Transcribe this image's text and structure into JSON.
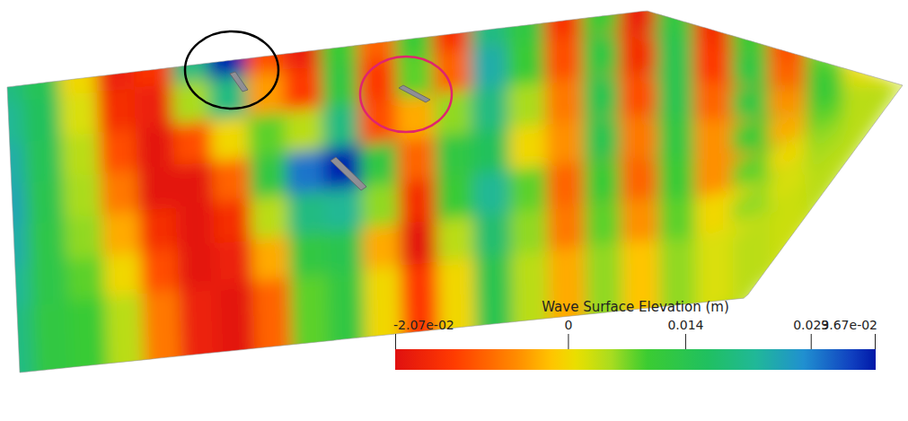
{
  "chart_data": {
    "type": "surface",
    "colorbar_title": "Wave Surface Elevation (m)",
    "color_range": [
      -0.0207,
      0.0367
    ],
    "color_ticks": [
      {
        "value": -0.0207,
        "label": "-2.07e-02"
      },
      0,
      0.014,
      0.029,
      {
        "value": 0.0367,
        "label": "3.67e-02"
      }
    ],
    "cells": [
      [
        0.02,
        0.015,
        0.0,
        -0.018,
        -0.015,
        0.02,
        0.036,
        -0.012,
        -0.018,
        0.01,
        -0.01,
        0.01,
        -0.015,
        0.02,
        0.012,
        -0.015,
        0.01,
        -0.018,
        0.012,
        -0.016,
        0.01,
        -0.012,
        0.008,
        0.0
      ],
      [
        0.022,
        0.016,
        0.002,
        -0.016,
        -0.018,
        0.005,
        0.02,
        -0.005,
        -0.014,
        0.012,
        -0.014,
        0.008,
        -0.01,
        0.024,
        0.01,
        -0.012,
        0.012,
        -0.016,
        0.014,
        -0.014,
        0.012,
        -0.01,
        0.01,
        0.002
      ],
      [
        0.024,
        0.015,
        0.004,
        -0.012,
        -0.02,
        -0.012,
        0.0,
        0.008,
        0.004,
        0.02,
        -0.012,
        -0.004,
        0.006,
        0.02,
        0.005,
        -0.008,
        0.014,
        -0.012,
        0.014,
        -0.01,
        0.012,
        -0.006,
        0.01,
        0.004
      ],
      [
        0.025,
        0.014,
        0.005,
        -0.008,
        -0.02,
        -0.02,
        -0.01,
        0.012,
        0.03,
        0.036,
        0.012,
        -0.01,
        0.012,
        0.016,
        0.0,
        -0.006,
        0.014,
        -0.008,
        0.012,
        -0.006,
        0.01,
        -0.004,
        0.008,
        0.004
      ],
      [
        0.024,
        0.013,
        0.006,
        -0.004,
        -0.016,
        -0.02,
        -0.016,
        0.004,
        0.02,
        0.022,
        0.006,
        -0.016,
        0.01,
        0.022,
        0.008,
        -0.01,
        0.01,
        -0.01,
        0.01,
        -0.006,
        0.008,
        0.0,
        0.006,
        0.004
      ],
      [
        0.022,
        0.013,
        0.008,
        0.0,
        -0.012,
        -0.02,
        -0.018,
        -0.004,
        0.012,
        0.014,
        -0.004,
        -0.02,
        0.004,
        0.018,
        0.006,
        -0.008,
        0.008,
        -0.006,
        0.008,
        0.0,
        0.006,
        0.002,
        0.005,
        0.004
      ],
      [
        0.02,
        0.012,
        0.01,
        0.004,
        -0.008,
        -0.018,
        -0.02,
        -0.01,
        0.008,
        0.012,
        0.0,
        -0.014,
        0.0,
        0.014,
        0.004,
        -0.004,
        0.006,
        -0.002,
        0.006,
        0.002,
        0.004,
        0.003,
        0.004,
        0.004
      ]
    ]
  }
}
